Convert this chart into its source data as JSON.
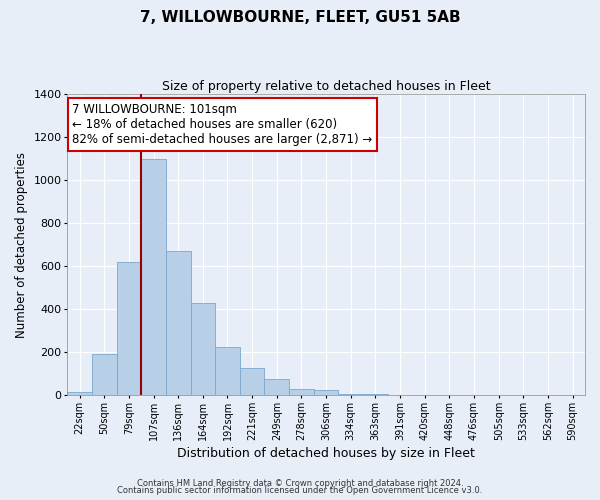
{
  "title": "7, WILLOWBOURNE, FLEET, GU51 5AB",
  "subtitle": "Size of property relative to detached houses in Fleet",
  "xlabel": "Distribution of detached houses by size in Fleet",
  "ylabel": "Number of detached properties",
  "bar_labels": [
    "22sqm",
    "50sqm",
    "79sqm",
    "107sqm",
    "136sqm",
    "164sqm",
    "192sqm",
    "221sqm",
    "249sqm",
    "278sqm",
    "306sqm",
    "334sqm",
    "363sqm",
    "391sqm",
    "420sqm",
    "448sqm",
    "476sqm",
    "505sqm",
    "533sqm",
    "562sqm",
    "590sqm"
  ],
  "bar_values": [
    15,
    190,
    620,
    1100,
    670,
    430,
    225,
    125,
    75,
    30,
    25,
    5,
    5,
    1,
    0,
    0,
    0,
    0,
    0,
    0,
    0
  ],
  "bar_color": "#b8cfe8",
  "bar_edge_color": "#7aa8cc",
  "vline_x_index": 3,
  "vline_color": "#990000",
  "annotation_text": "7 WILLOWBOURNE: 101sqm\n← 18% of detached houses are smaller (620)\n82% of semi-detached houses are larger (2,871) →",
  "annotation_box_color": "#ffffff",
  "annotation_box_edge": "#cc0000",
  "ylim": [
    0,
    1400
  ],
  "yticks": [
    0,
    200,
    400,
    600,
    800,
    1000,
    1200,
    1400
  ],
  "footer1": "Contains HM Land Registry data © Crown copyright and database right 2024.",
  "footer2": "Contains public sector information licensed under the Open Government Licence v3.0.",
  "background_color": "#e8eef8",
  "plot_bg_color": "#e8eef8",
  "title_fontsize": 11,
  "subtitle_fontsize": 9,
  "annotation_fontsize": 8.5,
  "grid_color": "#ffffff"
}
